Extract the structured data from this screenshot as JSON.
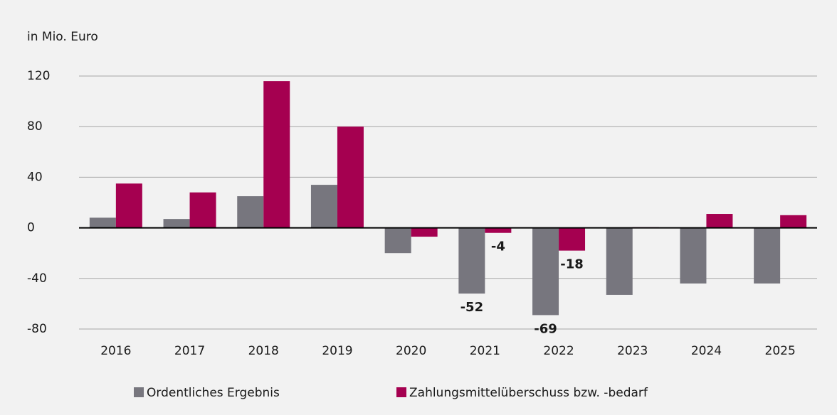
{
  "chart_data": {
    "type": "bar",
    "y_label": "in Mio. Euro",
    "categories": [
      "2016",
      "2017",
      "2018",
      "2019",
      "2020",
      "2021",
      "2022",
      "2023",
      "2024",
      "2025"
    ],
    "series": [
      {
        "name": "Ordentliches Ergebnis",
        "color": "#77767e",
        "values": [
          8,
          7,
          25,
          34,
          -20,
          -52,
          -69,
          -53,
          -44,
          -44
        ],
        "value_labels": [
          null,
          null,
          null,
          null,
          null,
          "-52",
          "-69",
          null,
          null,
          null
        ]
      },
      {
        "name": "Zahlungsmittelüberschuss bzw. -bedarf",
        "color": "#a50050",
        "values": [
          35,
          28,
          116,
          80,
          -7,
          -4,
          -18,
          0.5,
          11,
          10
        ],
        "value_labels": [
          null,
          null,
          null,
          null,
          null,
          "-4",
          "-18",
          null,
          null,
          null
        ]
      }
    ],
    "ylim": [
      -80,
      120
    ],
    "yticks": [
      -80,
      -40,
      0,
      40,
      80,
      120
    ],
    "grid": true,
    "legend": "bottom"
  }
}
